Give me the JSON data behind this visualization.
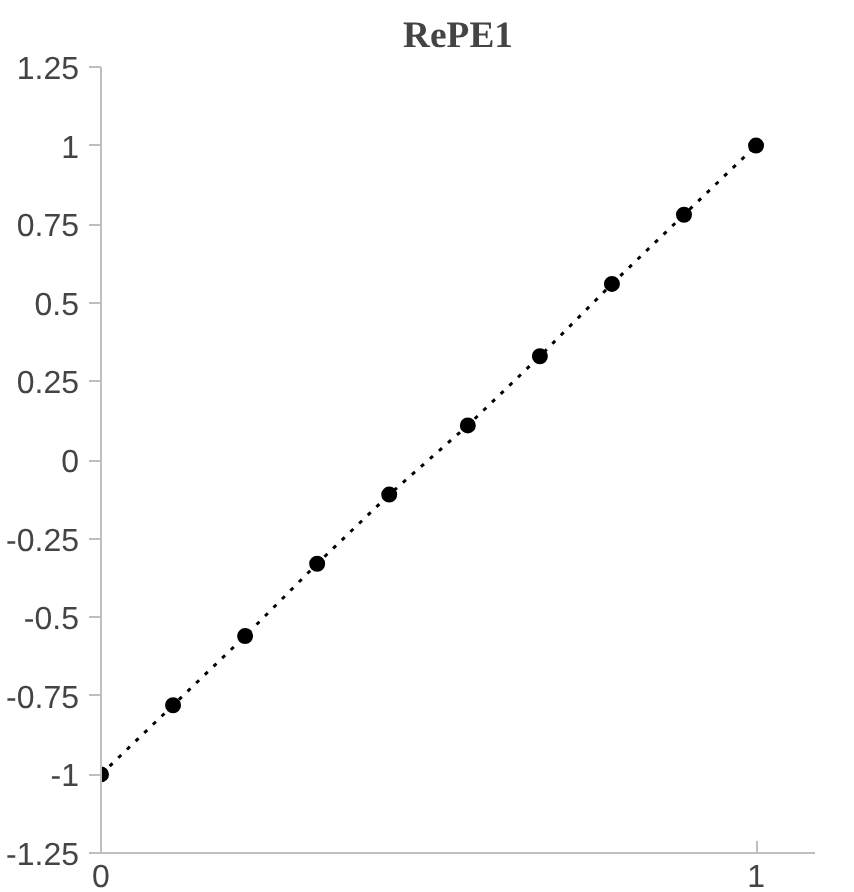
{
  "chart_data": {
    "type": "line",
    "title": "RePE1",
    "x": [
      0,
      0.11,
      0.22,
      0.33,
      0.44,
      0.56,
      0.67,
      0.78,
      0.89,
      1
    ],
    "series": [
      {
        "color": "#000000",
        "values": [
          -1,
          -0.78,
          -0.56,
          -0.33,
          -0.11,
          0.11,
          0.33,
          0.56,
          0.78,
          1
        ]
      }
    ],
    "marker": "circle",
    "line_style": "dotted",
    "xlim": [
      0,
      1.09
    ],
    "xticks": [
      0,
      1
    ],
    "ylim": [
      -1.25,
      1.25
    ],
    "yticks": [
      -1.25,
      -1,
      -0.75,
      -0.5,
      -0.25,
      0,
      0.25,
      0.5,
      0.75,
      1,
      1.25
    ]
  }
}
